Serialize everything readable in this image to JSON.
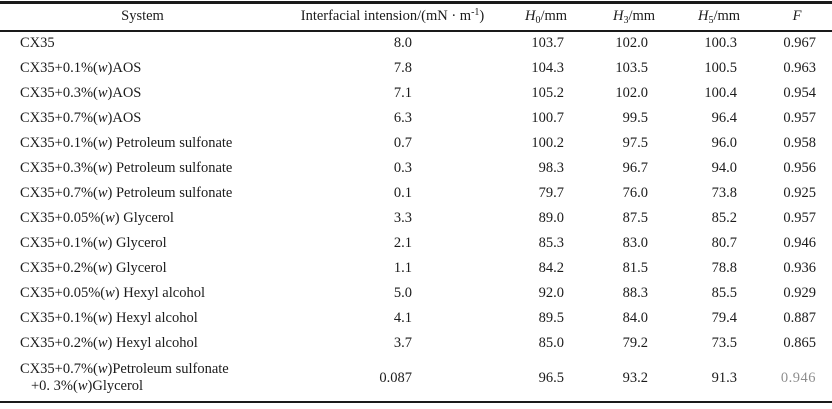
{
  "table": {
    "columns": [
      {
        "key": "system",
        "label": "System"
      },
      {
        "key": "tension",
        "label_pre": "Interfacial intension/(mN · m",
        "label_sup": "-1",
        "label_post": ")"
      },
      {
        "key": "h0",
        "sym": "H",
        "sub": "0",
        "unit": "/mm"
      },
      {
        "key": "h3",
        "sym": "H",
        "sub": "3",
        "unit": "/mm"
      },
      {
        "key": "h5",
        "sym": "H",
        "sub": "5",
        "unit": "/mm"
      },
      {
        "key": "f",
        "sym": "F"
      }
    ],
    "rows": [
      {
        "system": "CX35",
        "tension": "8.0",
        "h0": "103.7",
        "h3": "102.0",
        "h5": "100.3",
        "f": "0.967"
      },
      {
        "system": "CX35+0.1%(w)AOS",
        "tension": "7.8",
        "h0": "104.3",
        "h3": "103.5",
        "h5": "100.5",
        "f": "0.963"
      },
      {
        "system": "CX35+0.3%(w)AOS",
        "tension": "7.1",
        "h0": "105.2",
        "h3": "102.0",
        "h5": "100.4",
        "f": "0.954"
      },
      {
        "system": "CX35+0.7%(w)AOS",
        "tension": "6.3",
        "h0": "100.7",
        "h3": "99.5",
        "h5": "96.4",
        "f": "0.957"
      },
      {
        "system": "CX35+0.1%(w) Petroleum sulfonate",
        "tension": "0.7",
        "h0": "100.2",
        "h3": "97.5",
        "h5": "96.0",
        "f": "0.958"
      },
      {
        "system": "CX35+0.3%(w) Petroleum sulfonate",
        "tension": "0.3",
        "h0": "98.3",
        "h3": "96.7",
        "h5": "94.0",
        "f": "0.956"
      },
      {
        "system": "CX35+0.7%(w) Petroleum sulfonate",
        "tension": "0.1",
        "h0": "79.7",
        "h3": "76.0",
        "h5": "73.8",
        "f": "0.925"
      },
      {
        "system": "CX35+0.05%(w) Glycerol",
        "tension": "3.3",
        "h0": "89.0",
        "h3": "87.5",
        "h5": "85.2",
        "f": "0.957"
      },
      {
        "system": "CX35+0.1%(w) Glycerol",
        "tension": "2.1",
        "h0": "85.3",
        "h3": "83.0",
        "h5": "80.7",
        "f": "0.946"
      },
      {
        "system": "CX35+0.2%(w) Glycerol",
        "tension": "1.1",
        "h0": "84.2",
        "h3": "81.5",
        "h5": "78.8",
        "f": "0.936"
      },
      {
        "system": "CX35+0.05%(w) Hexyl alcohol",
        "tension": "5.0",
        "h0": "92.0",
        "h3": "88.3",
        "h5": "85.5",
        "f": "0.929"
      },
      {
        "system": "CX35+0.1%(w) Hexyl alcohol",
        "tension": "4.1",
        "h0": "89.5",
        "h3": "84.0",
        "h5": "79.4",
        "f": "0.887"
      },
      {
        "system": "CX35+0.2%(w) Hexyl alcohol",
        "tension": "3.7",
        "h0": "85.0",
        "h3": "79.2",
        "h5": "73.5",
        "f": "0.865"
      },
      {
        "system_lines": [
          "CX35+0.7%(w)Petroleum sulfonate",
          "+0. 3%(w)Glycerol"
        ],
        "tension": "0.087",
        "h0": "96.5",
        "h3": "93.2",
        "h5": "91.3",
        "f": "0.946",
        "f_degraded": true
      }
    ]
  }
}
